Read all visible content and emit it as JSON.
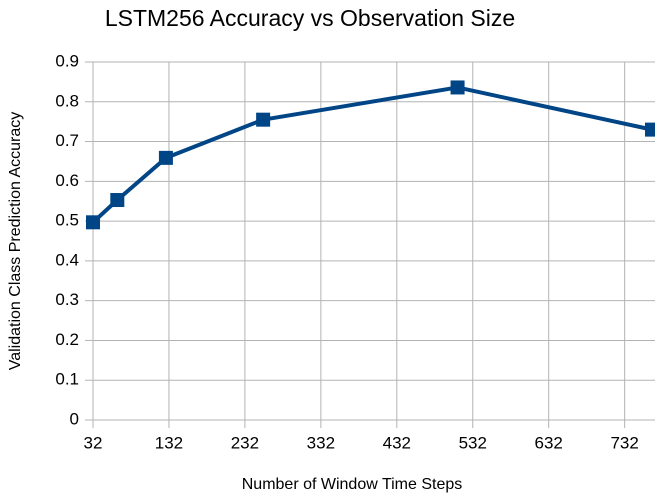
{
  "chart_data": {
    "type": "line",
    "title": "LSTM256 Accuracy vs Observation Size",
    "x_label": "Number of Window Time Steps",
    "y_label": "Validation Class Prediction Accuracy",
    "x": [
      32,
      64,
      128,
      256,
      512,
      768
    ],
    "series": [
      {
        "name": "LSTM256",
        "color": "#004586",
        "values": [
          0.497,
          0.553,
          0.659,
          0.755,
          0.836,
          0.73
        ]
      }
    ],
    "xlim": [
      32,
      768
    ],
    "xticks": [
      32,
      132,
      232,
      332,
      432,
      532,
      632,
      732
    ],
    "ylim": [
      0,
      0.9
    ],
    "yticks": [
      0,
      0.1,
      0.2,
      0.3,
      0.4,
      0.5,
      0.6,
      0.7,
      0.8,
      0.9
    ],
    "grid": true
  }
}
